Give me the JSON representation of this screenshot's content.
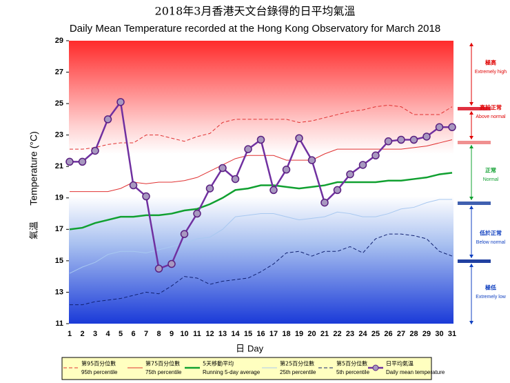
{
  "chart_data": {
    "type": "line",
    "title": "2018年3月香港天文台錄得的日平均氣溫",
    "subtitle": "Daily Mean Temperature recorded at the Hong Kong Observatory for March 2018",
    "ylabel": "Temperature (°C)",
    "ylabel_zh": "氣溫",
    "xlabel": "Day",
    "xlabel_zh": "日",
    "x": [
      1,
      2,
      3,
      4,
      5,
      6,
      7,
      8,
      9,
      10,
      11,
      12,
      13,
      14,
      15,
      16,
      17,
      18,
      19,
      20,
      21,
      22,
      23,
      24,
      25,
      26,
      27,
      28,
      29,
      30,
      31
    ],
    "xlim": [
      1,
      31
    ],
    "xticks": [
      1,
      2,
      3,
      4,
      5,
      6,
      7,
      8,
      9,
      10,
      11,
      12,
      13,
      14,
      15,
      16,
      17,
      18,
      19,
      20,
      21,
      22,
      23,
      24,
      25,
      26,
      27,
      28,
      29,
      30,
      31
    ],
    "ylim": [
      11,
      29
    ],
    "yticks": [
      11,
      13,
      15,
      17,
      19,
      21,
      23,
      25,
      27,
      29
    ],
    "series": [
      {
        "name": "95th percentile",
        "name_zh": "第95百分位數",
        "color": "#e03030",
        "style": "dashed",
        "width": 1,
        "values": [
          22.1,
          22.1,
          22.2,
          22.4,
          22.5,
          22.5,
          23.0,
          23.0,
          22.8,
          22.6,
          22.9,
          23.1,
          23.8,
          24.0,
          24.0,
          24.0,
          24.0,
          24.0,
          23.8,
          23.9,
          24.1,
          24.3,
          24.5,
          24.6,
          24.8,
          24.9,
          24.8,
          24.3,
          24.3,
          24.3,
          24.8
        ]
      },
      {
        "name": "75th percentile",
        "name_zh": "第75百分位數",
        "color": "#e03030",
        "style": "solid",
        "width": 1,
        "values": [
          19.4,
          19.4,
          19.4,
          19.4,
          19.6,
          20.0,
          19.9,
          20.0,
          20.0,
          20.1,
          20.3,
          20.7,
          21.1,
          21.5,
          21.7,
          21.7,
          21.7,
          21.4,
          21.4,
          21.4,
          21.8,
          22.1,
          22.1,
          22.1,
          22.1,
          22.1,
          22.1,
          22.2,
          22.3,
          22.5,
          22.7
        ]
      },
      {
        "name": "Running 5-day average",
        "name_zh": "5天移動平均",
        "color": "#10a030",
        "style": "solid",
        "width": 2.5,
        "values": [
          17.0,
          17.1,
          17.4,
          17.6,
          17.8,
          17.8,
          17.9,
          17.9,
          18.0,
          18.2,
          18.3,
          18.6,
          19.0,
          19.5,
          19.6,
          19.8,
          19.8,
          19.7,
          19.6,
          19.7,
          19.8,
          20.0,
          20.0,
          20.0,
          20.0,
          20.1,
          20.1,
          20.2,
          20.3,
          20.5,
          20.6
        ]
      },
      {
        "name": "25th percentile",
        "name_zh": "第25百分位數",
        "color": "#a8c8f0",
        "style": "solid",
        "width": 1,
        "values": [
          14.2,
          14.6,
          14.9,
          15.4,
          15.6,
          15.6,
          15.5,
          15.7,
          15.9,
          16.1,
          16.4,
          16.5,
          17.0,
          17.8,
          17.9,
          18.0,
          18.0,
          17.8,
          17.6,
          17.7,
          17.8,
          18.1,
          18.0,
          17.8,
          17.8,
          18.0,
          18.3,
          18.4,
          18.7,
          18.9,
          18.9
        ]
      },
      {
        "name": "5th percentile",
        "name_zh": "第5百分位數",
        "color": "#102070",
        "style": "dashed",
        "width": 1,
        "values": [
          12.2,
          12.2,
          12.4,
          12.5,
          12.6,
          12.8,
          13.0,
          12.9,
          13.4,
          14.0,
          13.9,
          13.5,
          13.7,
          13.8,
          13.9,
          14.3,
          14.8,
          15.5,
          15.6,
          15.3,
          15.6,
          15.6,
          15.9,
          15.5,
          16.4,
          16.7,
          16.7,
          16.6,
          16.4,
          15.6,
          15.3
        ]
      },
      {
        "name": "Daily mean temperature",
        "name_zh": "日平均氣溫",
        "color": "#7030a0",
        "style": "solid",
        "width": 2.5,
        "marker": true,
        "values": [
          21.3,
          21.3,
          22.0,
          24.0,
          25.1,
          19.8,
          19.1,
          14.5,
          14.8,
          16.7,
          18.0,
          19.6,
          20.9,
          20.2,
          22.1,
          22.7,
          19.5,
          20.8,
          22.8,
          21.4,
          18.7,
          19.5,
          20.5,
          21.1,
          21.7,
          22.6,
          22.7,
          22.7,
          22.9,
          23.5,
          23.5
        ]
      }
    ],
    "annotations": [
      {
        "zh": "極高",
        "en": "Extremely high",
        "color": "#e00000"
      },
      {
        "zh": "高於正常",
        "en": "Above normal",
        "color": "#e00000"
      },
      {
        "zh": "正常",
        "en": "Normal",
        "color": "#10a030"
      },
      {
        "zh": "低於正常",
        "en": "Below normal",
        "color": "#1040c0"
      },
      {
        "zh": "極低",
        "en": "Extremely low",
        "color": "#1040c0"
      }
    ]
  }
}
